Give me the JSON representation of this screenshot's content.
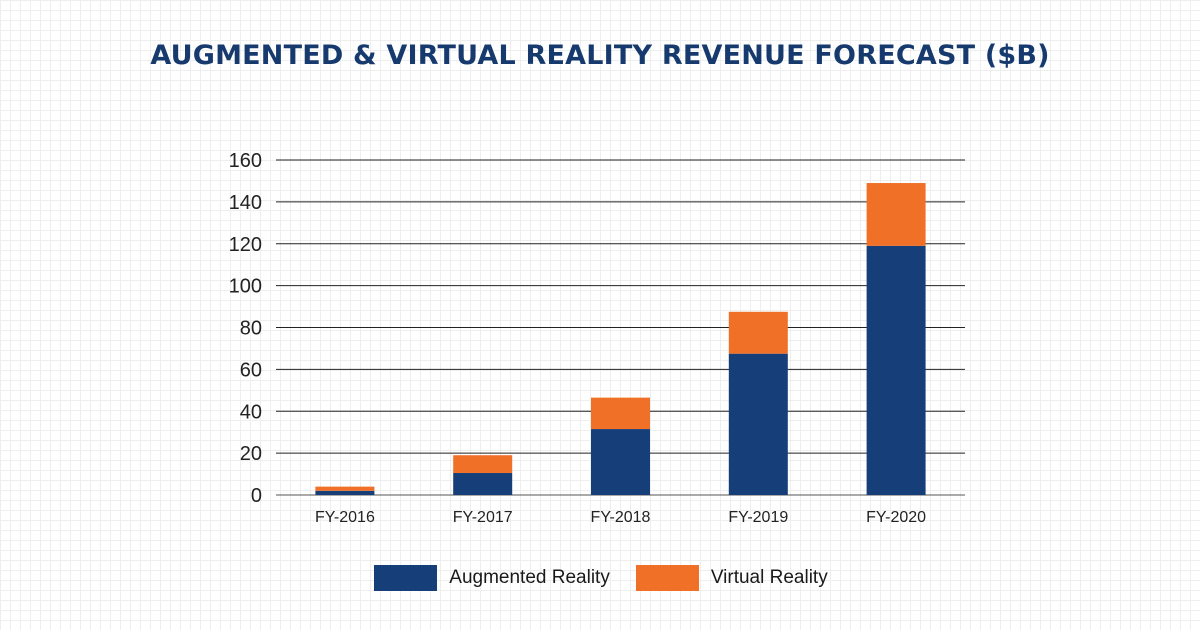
{
  "chart_data": {
    "type": "bar",
    "stacked": true,
    "title": "AUGMENTED & VIRTUAL REALITY REVENUE FORECAST ($B)",
    "categories": [
      "FY-2016",
      "FY-2017",
      "FY-2018",
      "FY-2019",
      "FY-2020"
    ],
    "series": [
      {
        "name": "Augmented Reality",
        "color": "#163f7a",
        "values": [
          2,
          10.5,
          31.5,
          67.5,
          119
        ]
      },
      {
        "name": "Virtual Reality",
        "color": "#f07027",
        "values": [
          2,
          8.5,
          15,
          20,
          30
        ]
      }
    ],
    "yticks": [
      0,
      20,
      40,
      60,
      80,
      100,
      120,
      140,
      160
    ],
    "ylim": [
      0,
      160
    ],
    "xlabel": "",
    "ylabel": "",
    "grid": true,
    "legend_position": "bottom"
  }
}
